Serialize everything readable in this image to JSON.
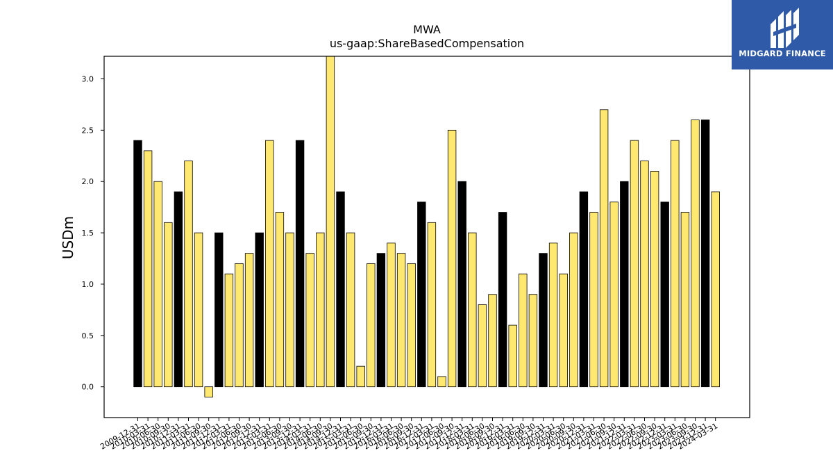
{
  "logo": {
    "text": "MIDGARD FINANCE",
    "background": "#2f5aa8"
  },
  "chart_data": {
    "type": "bar",
    "title": "MWA",
    "subtitle": "us-gaap:ShareBasedCompensation",
    "ylabel": "USDm",
    "xlabel": "",
    "ylim": [
      -0.3,
      3.22
    ],
    "yticks": [
      0.0,
      0.5,
      1.0,
      1.5,
      2.0,
      2.5,
      3.0
    ],
    "ytick_labels": [
      "0.0",
      "0.5",
      "1.0",
      "1.5",
      "2.0",
      "2.5",
      "3.0"
    ],
    "grid": false,
    "colors": {
      "annual": "#000000",
      "quarterly": "#ffe870",
      "edge": "#000000"
    },
    "categories": [
      "2009-12-31",
      "2010-03-31",
      "2010-06-30",
      "2010-09-30",
      "2010-12-31",
      "2011-03-31",
      "2011-06-30",
      "2011-09-30",
      "2011-12-31",
      "2012-03-31",
      "2012-06-30",
      "2012-09-30",
      "2012-12-31",
      "2013-03-31",
      "2013-06-30",
      "2013-09-30",
      "2013-12-31",
      "2014-03-31",
      "2014-06-30",
      "2014-09-30",
      "2014-12-31",
      "2015-03-31",
      "2015-06-30",
      "2015-09-30",
      "2015-12-31",
      "2016-03-31",
      "2016-06-30",
      "2016-09-30",
      "2016-12-31",
      "2017-03-31",
      "2017-06-30",
      "2017-09-30",
      "2017-12-31",
      "2018-03-31",
      "2018-06-30",
      "2018-09-30",
      "2018-12-31",
      "2019-03-31",
      "2019-06-30",
      "2019-09-30",
      "2019-12-31",
      "2020-03-31",
      "2020-06-30",
      "2020-09-30",
      "2020-12-31",
      "2021-03-31",
      "2021-06-30",
      "2021-09-30",
      "2021-12-31",
      "2022-03-31",
      "2022-06-30",
      "2022-09-30",
      "2022-12-31",
      "2023-03-31",
      "2023-06-30",
      "2023-09-30",
      "2023-12-31",
      "2024-03-31"
    ],
    "values": [
      2.4,
      2.3,
      2.0,
      1.6,
      1.9,
      2.2,
      1.5,
      -0.1,
      1.5,
      1.1,
      1.2,
      1.3,
      1.5,
      2.4,
      1.7,
      1.5,
      2.4,
      1.3,
      1.5,
      3.3,
      1.9,
      1.5,
      0.2,
      1.2,
      1.3,
      1.4,
      1.3,
      1.2,
      1.8,
      1.6,
      0.1,
      2.5,
      2.0,
      1.5,
      0.8,
      0.9,
      1.7,
      0.6,
      1.1,
      0.9,
      1.3,
      1.4,
      1.1,
      1.5,
      1.9,
      1.7,
      2.7,
      1.8,
      2.0,
      2.4,
      2.2,
      2.1,
      1.8,
      2.4,
      1.7,
      2.6,
      2.6,
      1.9
    ],
    "bar_kind": [
      "annual",
      "quarterly",
      "quarterly",
      "quarterly",
      "annual",
      "quarterly",
      "quarterly",
      "quarterly",
      "annual",
      "quarterly",
      "quarterly",
      "quarterly",
      "annual",
      "quarterly",
      "quarterly",
      "quarterly",
      "annual",
      "quarterly",
      "quarterly",
      "quarterly",
      "annual",
      "quarterly",
      "quarterly",
      "quarterly",
      "annual",
      "quarterly",
      "quarterly",
      "quarterly",
      "annual",
      "quarterly",
      "quarterly",
      "quarterly",
      "annual",
      "quarterly",
      "quarterly",
      "quarterly",
      "annual",
      "quarterly",
      "quarterly",
      "quarterly",
      "annual",
      "quarterly",
      "quarterly",
      "quarterly",
      "annual",
      "quarterly",
      "quarterly",
      "quarterly",
      "annual",
      "quarterly",
      "quarterly",
      "quarterly",
      "annual",
      "quarterly",
      "quarterly",
      "quarterly",
      "annual",
      "quarterly"
    ]
  }
}
